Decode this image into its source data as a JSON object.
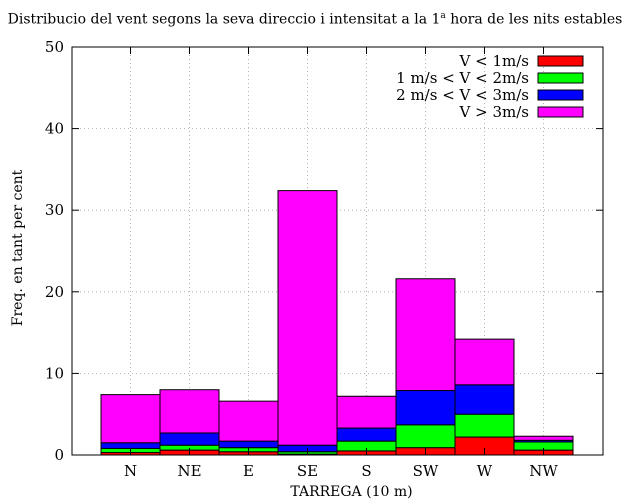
{
  "chart_data": {
    "type": "bar",
    "stacked": true,
    "title": {
      "main": "Distribucio del vent segons la seva direccio i intensitat a la 1",
      "sup": "a",
      "rest": " hora de les nits estables"
    },
    "xlabel": "TARREGA (10 m)",
    "ylabel": "Freq. en tant per cent",
    "ylim": [
      0,
      50
    ],
    "yticks": [
      0,
      10,
      20,
      30,
      40,
      50
    ],
    "grid": true,
    "legend_position": "top-right",
    "categories": [
      "N",
      "NE",
      "E",
      "SE",
      "S",
      "SW",
      "W",
      "NW"
    ],
    "series": [
      {
        "name": "V < 1m/s",
        "color": "#ff0000",
        "values": [
          0.3,
          0.6,
          0.4,
          0.1,
          0.5,
          0.9,
          2.2,
          0.6
        ]
      },
      {
        "name": "1 m/s < V < 2m/s",
        "color": "#00ff00",
        "values": [
          0.5,
          0.6,
          0.5,
          0.3,
          1.2,
          2.8,
          2.8,
          1.0
        ]
      },
      {
        "name": "2 m/s < V < 3m/s",
        "color": "#0000ff",
        "values": [
          0.7,
          1.5,
          0.8,
          0.8,
          1.6,
          4.2,
          3.6,
          0.2
        ]
      },
      {
        "name": "V > 3m/s",
        "color": "#ff00ff",
        "values": [
          5.9,
          5.3,
          4.9,
          31.2,
          3.9,
          13.7,
          5.6,
          0.5
        ]
      }
    ]
  }
}
